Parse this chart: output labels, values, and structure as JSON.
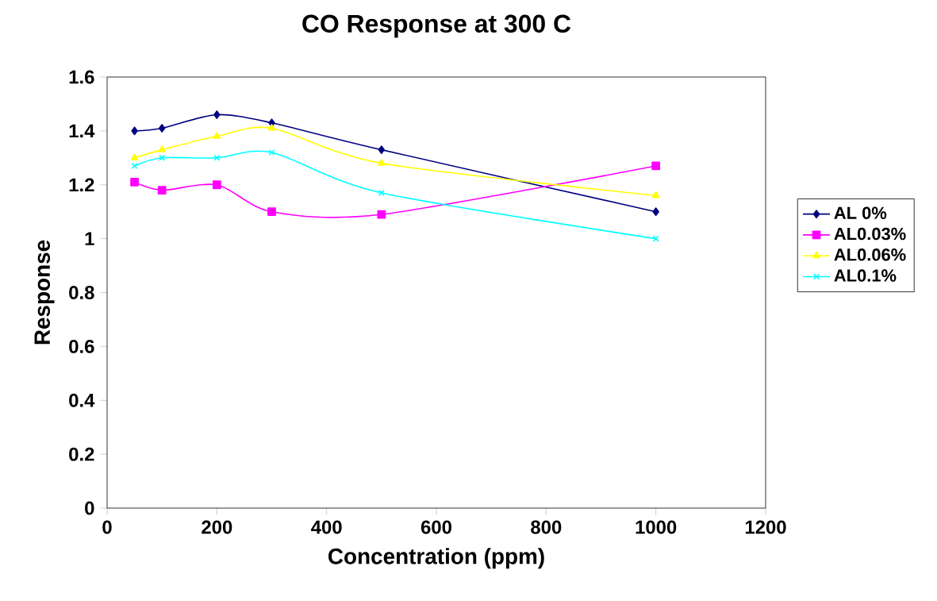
{
  "chart_data": {
    "type": "line",
    "title": "CO Response at 300 C",
    "xlabel": "Concentration (ppm)",
    "ylabel": "Response",
    "x": [
      50,
      100,
      200,
      300,
      500,
      1000
    ],
    "series": [
      {
        "name": "AL 0%",
        "color": "#000080",
        "marker": "diamond",
        "values": [
          1.4,
          1.41,
          1.46,
          1.43,
          1.33,
          1.1
        ]
      },
      {
        "name": "AL0.03%",
        "color": "#ff00ff",
        "marker": "square",
        "values": [
          1.21,
          1.18,
          1.2,
          1.1,
          1.09,
          1.27
        ]
      },
      {
        "name": "AL0.06%",
        "color": "#ffff00",
        "marker": "triangle",
        "values": [
          1.3,
          1.33,
          1.38,
          1.41,
          1.28,
          1.16
        ]
      },
      {
        "name": "AL0.1%",
        "color": "#00ffff",
        "marker": "cross",
        "values": [
          1.27,
          1.3,
          1.3,
          1.32,
          1.17,
          1.0
        ]
      }
    ],
    "xlim": [
      0,
      1200
    ],
    "xticks": [
      0,
      200,
      400,
      600,
      800,
      1000,
      1200
    ],
    "ylim": [
      0,
      1.6
    ],
    "yticks": [
      0,
      {
        "value": 0.2,
        "label": "0.2"
      },
      {
        "value": 0.4,
        "label": "0.4"
      },
      {
        "value": 0.6,
        "label": "0.6"
      },
      {
        "value": 0.8,
        "label": "0.8"
      },
      1,
      {
        "value": 1.2,
        "label": "1.2"
      },
      {
        "value": 1.4,
        "label": "1.4"
      },
      {
        "value": 1.6,
        "label": "1.6"
      }
    ],
    "grid": false,
    "legend": "right",
    "line_style": "solid"
  }
}
